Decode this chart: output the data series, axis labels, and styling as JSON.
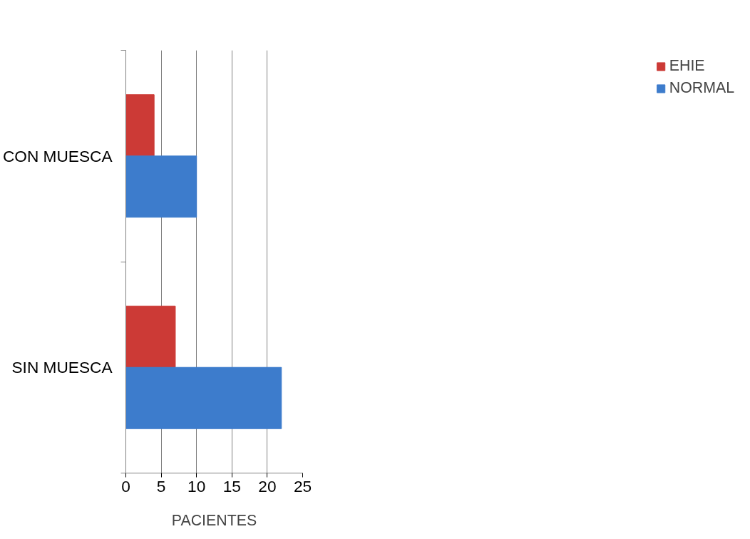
{
  "chart_data": {
    "type": "bar",
    "orientation": "horizontal",
    "categories": [
      "CON MUESCA",
      "SIN MUESCA"
    ],
    "series": [
      {
        "name": "EHIE",
        "color": "#cc3a36",
        "values": [
          4,
          7
        ]
      },
      {
        "name": "NORMAL",
        "color": "#3d7ccc",
        "values": [
          10,
          22
        ]
      }
    ],
    "xlabel": "PACIENTES",
    "xlim": [
      0,
      25
    ],
    "xticks": [
      0,
      5,
      10,
      15,
      20,
      25
    ],
    "grid": "x",
    "legend": "right"
  }
}
